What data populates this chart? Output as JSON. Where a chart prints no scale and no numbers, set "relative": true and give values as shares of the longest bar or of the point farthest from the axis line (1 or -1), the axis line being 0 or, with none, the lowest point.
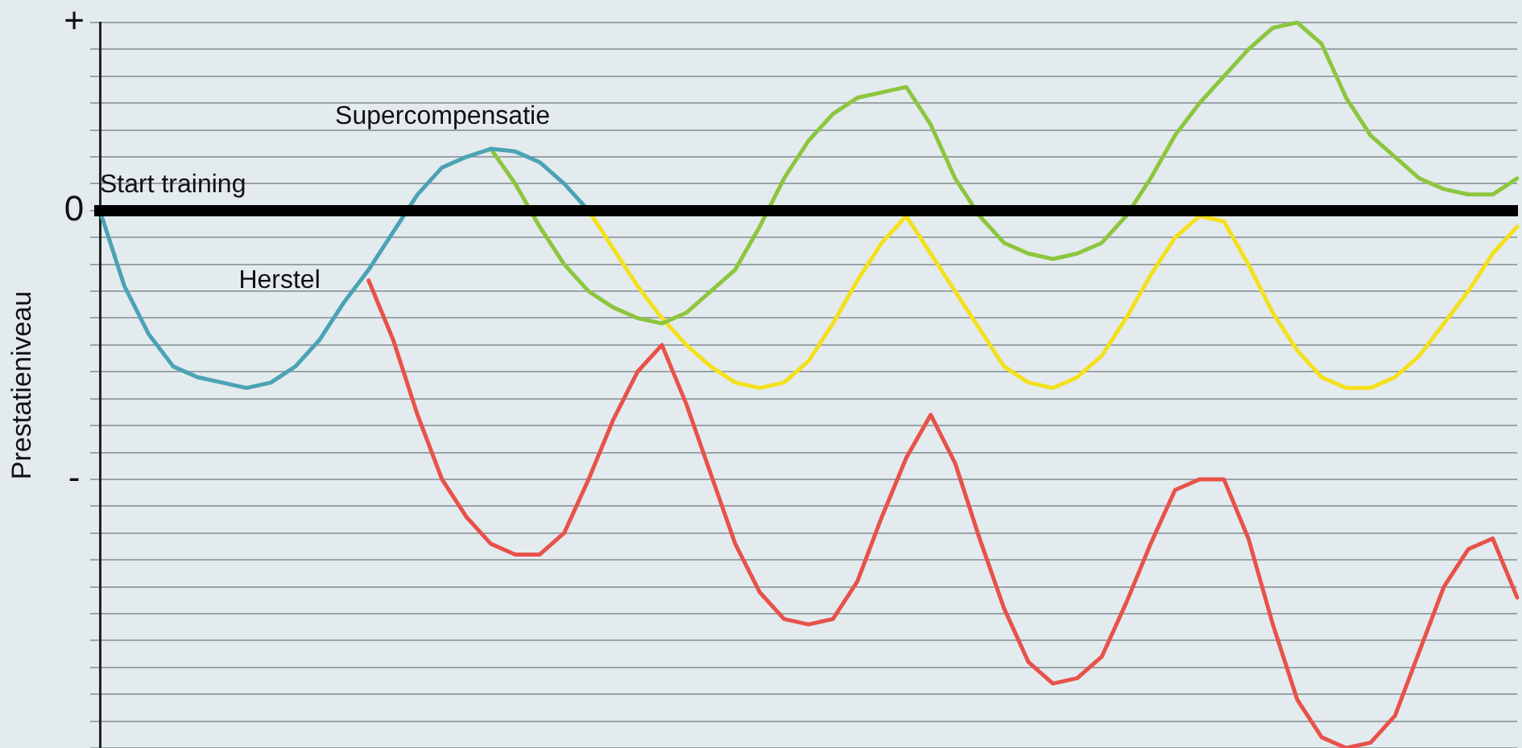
{
  "chart_data": {
    "type": "line",
    "relative": true,
    "ylabel": "Prestatieniveau",
    "grid": "y",
    "legend": false,
    "marker": "none",
    "line_style": "solid",
    "annotations": [
      "+",
      "0",
      "-",
      "Start training",
      "Supercompensatie",
      "Herstel"
    ],
    "categories": [
      null,
      null,
      null,
      null,
      null,
      null,
      null,
      null,
      null,
      null,
      null,
      null,
      null,
      null,
      null,
      null,
      null,
      null,
      null,
      null,
      null,
      null,
      null,
      null,
      null,
      null,
      null,
      null,
      null,
      null,
      null,
      null,
      null,
      null,
      null,
      null,
      null,
      null,
      null,
      null,
      null,
      null,
      null,
      null,
      null,
      null,
      null,
      null,
      null,
      null,
      null,
      null,
      null,
      null,
      null,
      null,
      null,
      null,
      null
    ],
    "series": [
      {
        "color": "#4ba3b5",
        "values": [
          0,
          -0.14,
          -0.23,
          -0.29,
          -0.31,
          -0.32,
          -0.33,
          -0.32,
          -0.29,
          -0.24,
          -0.17,
          -0.11,
          -0.04,
          0.03,
          0.08,
          0.1,
          0.115,
          0.11,
          0.09,
          0.05,
          0,
          null,
          null,
          null,
          null,
          null,
          null,
          null,
          null,
          null,
          null,
          null,
          null,
          null,
          null,
          null,
          null,
          null,
          null,
          null,
          null,
          null,
          null,
          null,
          null,
          null,
          null,
          null,
          null,
          null,
          null,
          null,
          null,
          null,
          null,
          null,
          null,
          null,
          null
        ]
      },
      {
        "color": "#e8524a",
        "values": [
          null,
          null,
          null,
          null,
          null,
          null,
          null,
          null,
          null,
          null,
          null,
          -0.13,
          -0.24,
          -0.38,
          -0.5,
          -0.57,
          -0.62,
          -0.64,
          -0.64,
          -0.6,
          -0.5,
          -0.39,
          -0.3,
          -0.25,
          -0.36,
          -0.49,
          -0.62,
          -0.71,
          -0.76,
          -0.77,
          -0.76,
          -0.69,
          -0.57,
          -0.46,
          -0.38,
          -0.47,
          -0.61,
          -0.74,
          -0.84,
          -0.88,
          -0.87,
          -0.83,
          -0.73,
          -0.62,
          -0.52,
          -0.5,
          -0.5,
          -0.61,
          -0.77,
          -0.91,
          -0.98,
          -1,
          -0.99,
          -0.94,
          -0.82,
          -0.7,
          -0.63,
          -0.61,
          -0.72
        ]
      },
      {
        "color": "#8cc63f",
        "values": [
          null,
          null,
          null,
          null,
          null,
          null,
          null,
          null,
          null,
          null,
          null,
          null,
          null,
          null,
          null,
          null,
          0.115,
          0.05,
          -0.03,
          -0.1,
          -0.15,
          -0.18,
          -0.2,
          -0.21,
          -0.19,
          -0.15,
          -0.11,
          -0.03,
          0.06,
          0.13,
          0.18,
          0.21,
          0.22,
          0.23,
          0.16,
          0.06,
          -0.01,
          -0.06,
          -0.08,
          -0.09,
          -0.08,
          -0.06,
          -0.01,
          0.06,
          0.14,
          0.2,
          0.25,
          0.3,
          0.34,
          0.35,
          0.31,
          0.21,
          0.14,
          0.1,
          0.06,
          0.04,
          0.03,
          0.03,
          0.06
        ]
      },
      {
        "color": "#f4e01c",
        "values": [
          null,
          null,
          null,
          null,
          null,
          null,
          null,
          null,
          null,
          null,
          null,
          null,
          null,
          null,
          null,
          null,
          null,
          null,
          null,
          null,
          0,
          -0.07,
          -0.14,
          -0.2,
          -0.25,
          -0.29,
          -0.32,
          -0.33,
          -0.32,
          -0.28,
          -0.21,
          -0.13,
          -0.06,
          -0.01,
          -0.08,
          -0.15,
          -0.22,
          -0.29,
          -0.32,
          -0.33,
          -0.31,
          -0.27,
          -0.2,
          -0.12,
          -0.05,
          -0.01,
          -0.02,
          -0.1,
          -0.19,
          -0.26,
          -0.31,
          -0.33,
          -0.33,
          -0.31,
          -0.27,
          -0.21,
          -0.15,
          -0.08,
          -0.03
        ]
      }
    ]
  }
}
